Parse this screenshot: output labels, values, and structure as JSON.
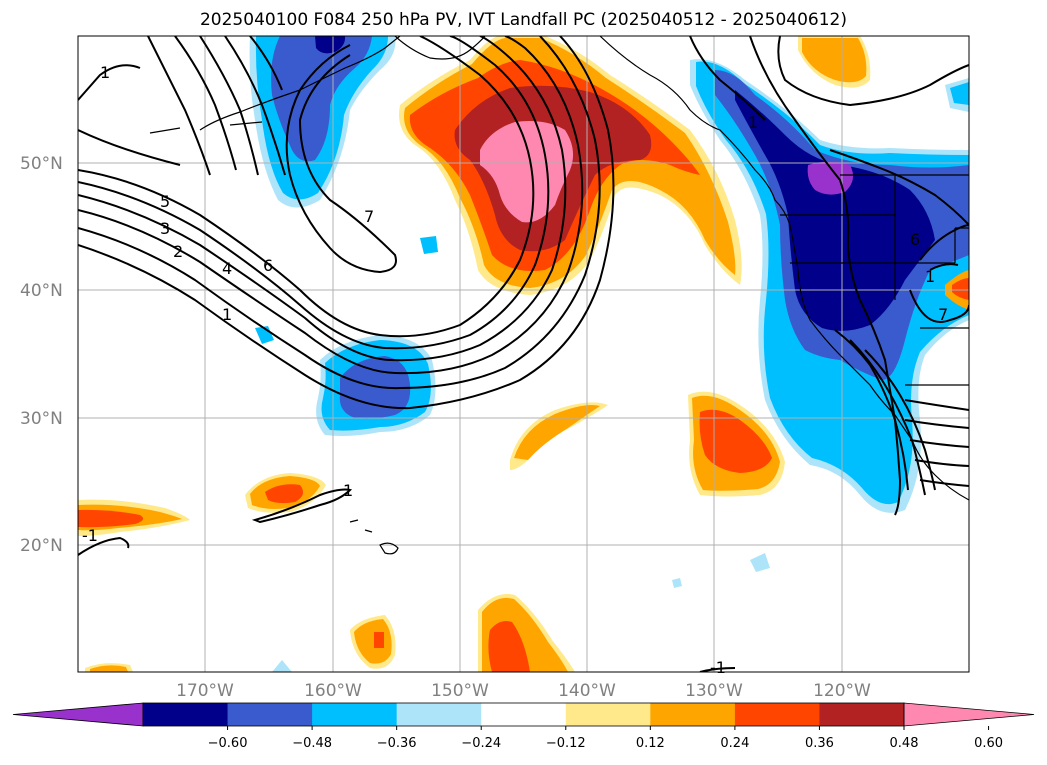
{
  "title": "2025040100 F084 250 hPa PV, IVT Landfall PC (2025040512 - 2025040612)",
  "latitude_labels": [
    "50°N",
    "40°N",
    "30°N",
    "20°N"
  ],
  "longitude_labels": [
    "170°W",
    "160°W",
    "150°W",
    "140°W",
    "130°W",
    "120°W"
  ],
  "contour_labels": [
    "5",
    "3",
    "2",
    "4",
    "6",
    "7",
    "1",
    "1",
    "-1",
    "1",
    "-1",
    "6",
    "1",
    "7",
    "1"
  ],
  "colorbar": {
    "tick_labels": [
      "−0.60",
      "−0.48",
      "−0.36",
      "−0.24",
      "−0.12",
      "0.12",
      "0.24",
      "0.36",
      "0.48",
      "0.60"
    ],
    "colors": [
      "#9932cc",
      "#00008b",
      "#3a5bcd",
      "#00bfff",
      "#ade4fa",
      "#ffffff",
      "#ffe98a",
      "#ffa500",
      "#ff4500",
      "#b22222",
      "#ff88b0"
    ]
  }
}
